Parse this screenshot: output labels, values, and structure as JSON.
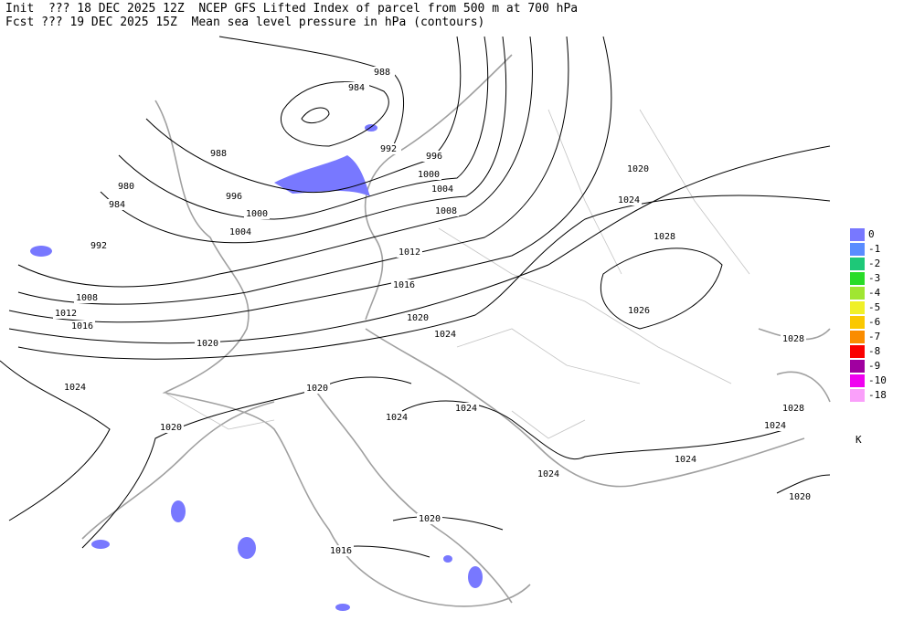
{
  "header": {
    "line1": "Init  ??? 18 DEC 2025 12Z  NCEP GFS Lifted Index of parcel from 500 m at 700 hPa",
    "line2": "Fcst ??? 19 DEC 2025 15Z  Mean sea level pressure in hPa (contours)"
  },
  "contour_labels": [
    988,
    984,
    992,
    996,
    1000,
    1004,
    1008,
    988,
    980,
    984,
    992,
    996,
    1000,
    1004,
    1012,
    1016,
    1008,
    1012,
    1016,
    1020,
    1024,
    1028,
    1020,
    1024,
    1020,
    1024,
    1020,
    1024,
    1024,
    1020,
    1026,
    1028,
    1028,
    1024,
    1024,
    1024,
    1020,
    1016,
    1020
  ],
  "legend": {
    "items": [
      {
        "value": 0,
        "color": "#7878ff"
      },
      {
        "value": -1,
        "color": "#5a8cff"
      },
      {
        "value": -2,
        "color": "#1ec878"
      },
      {
        "value": -3,
        "color": "#28dc28"
      },
      {
        "value": -4,
        "color": "#a0e632"
      },
      {
        "value": -5,
        "color": "#f0f028"
      },
      {
        "value": -6,
        "color": "#fac800"
      },
      {
        "value": -7,
        "color": "#fa8c00"
      },
      {
        "value": -8,
        "color": "#fa0000"
      },
      {
        "value": -9,
        "color": "#a000a0"
      },
      {
        "value": -10,
        "color": "#f000f0"
      },
      {
        "value": -18,
        "color": "#faa0fa"
      }
    ],
    "unit": "K"
  }
}
